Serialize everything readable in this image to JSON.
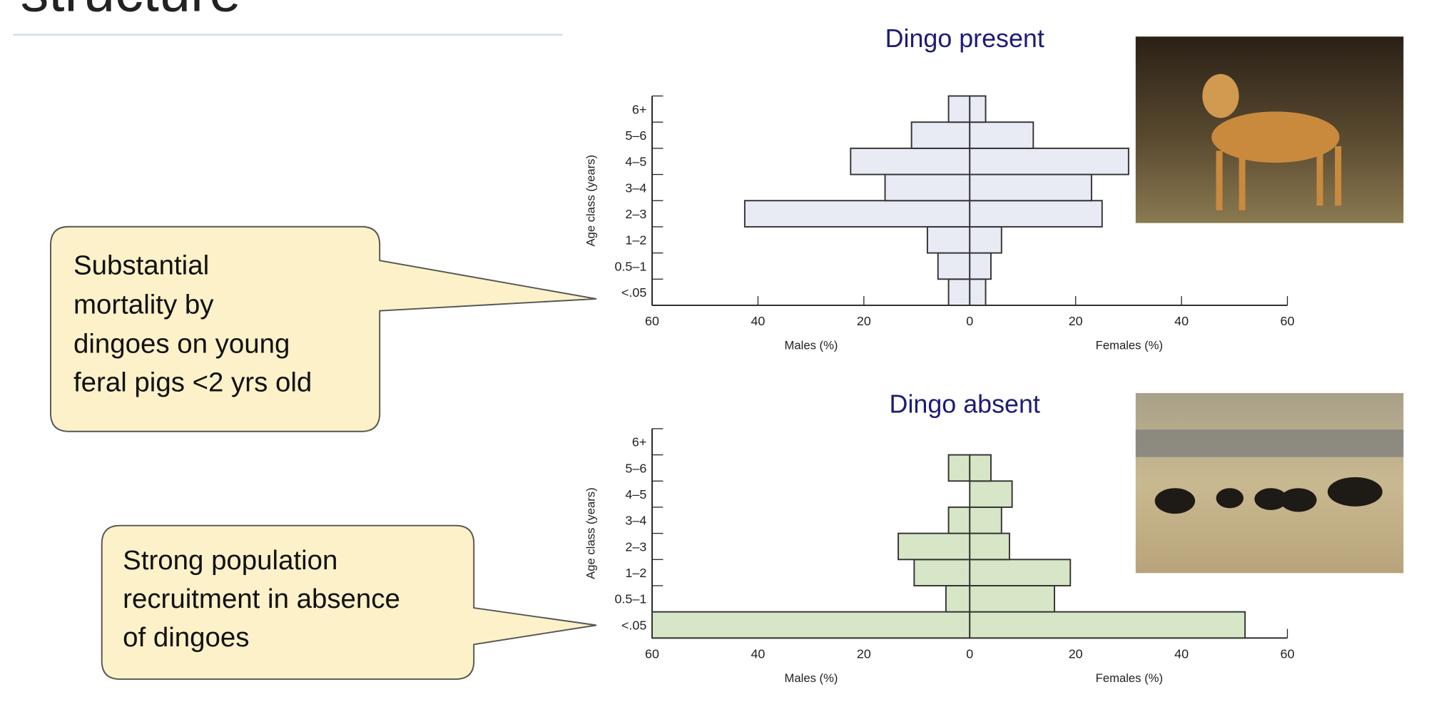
{
  "slide": {
    "title": "structure",
    "callouts": [
      {
        "lines": [
          "Substantial",
          "mortality by",
          "dingoes on young",
          "feral pigs <2 yrs old"
        ]
      },
      {
        "lines": [
          "Strong population",
          "recruitment in absence",
          "of dingoes"
        ]
      }
    ]
  },
  "chart_data": [
    {
      "type": "pyramid",
      "title": "Dingo present",
      "ylabel": "Age class (years)",
      "categories": [
        "<.05",
        "0.5–1",
        "1–2",
        "2–3",
        "3–4",
        "4–5",
        "5–6",
        "6+"
      ],
      "series": [
        {
          "name": "Males (%)",
          "color": "#e8eaf4",
          "values": [
            4,
            6,
            8,
            42.5,
            16,
            22.5,
            11,
            4
          ]
        },
        {
          "name": "Females (%)",
          "color": "#e8eaf4",
          "values": [
            3,
            4,
            6,
            25,
            23,
            30,
            12,
            3
          ]
        }
      ],
      "xlim": [
        -60,
        60
      ],
      "xticks": [
        {
          "value": -60,
          "label": "60"
        },
        {
          "value": -40,
          "label": "40"
        },
        {
          "value": -20,
          "label": "20"
        },
        0,
        20,
        40,
        60
      ]
    },
    {
      "type": "pyramid",
      "title": "Dingo absent",
      "ylabel": "Age class (years)",
      "categories": [
        "<.05",
        "0.5–1",
        "1–2",
        "2–3",
        "3–4",
        "4–5",
        "5–6",
        "6+"
      ],
      "series": [
        {
          "name": "Males (%)",
          "color": "#d6e6c6",
          "values": [
            60,
            4.5,
            10.5,
            13.5,
            4,
            0,
            4,
            0
          ]
        },
        {
          "name": "Females (%)",
          "color": "#d6e6c6",
          "values": [
            52,
            16,
            19,
            7.5,
            6,
            8,
            4,
            0
          ]
        }
      ],
      "xlim": [
        -60,
        60
      ],
      "xticks": [
        {
          "value": -60,
          "label": "60"
        },
        {
          "value": -40,
          "label": "40"
        },
        {
          "value": -20,
          "label": "20"
        },
        0,
        20,
        40,
        60
      ]
    }
  ]
}
